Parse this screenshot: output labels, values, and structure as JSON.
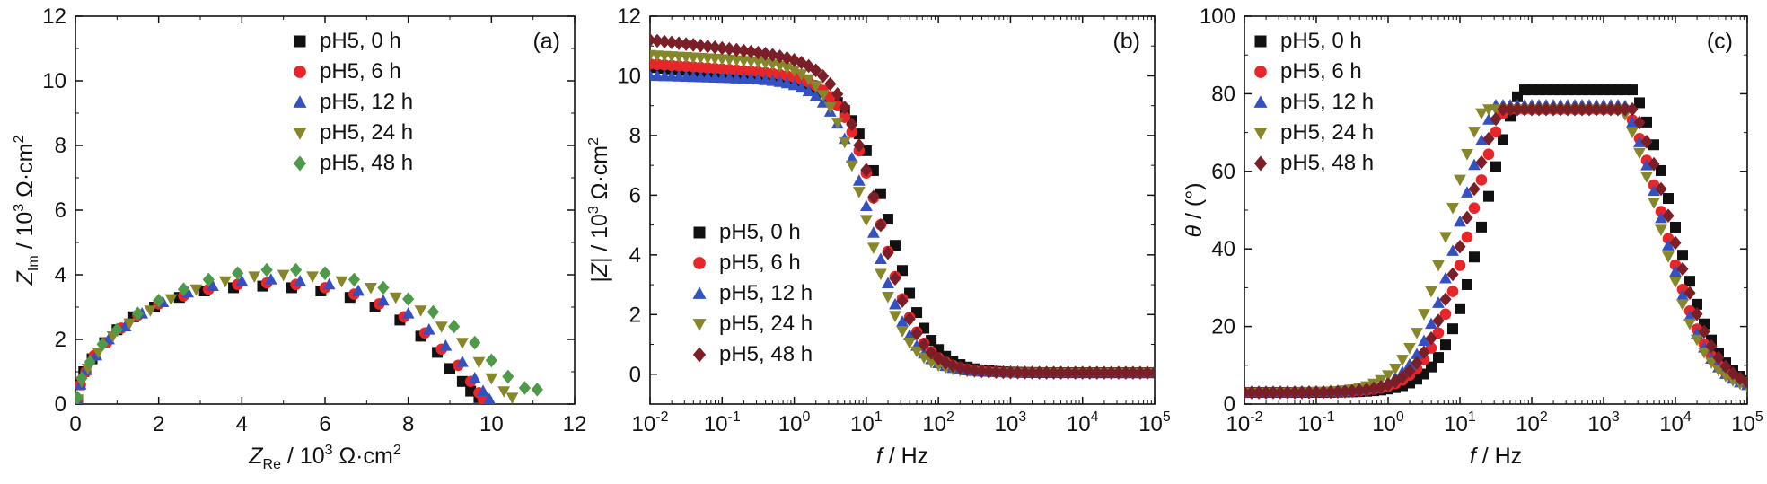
{
  "figure": {
    "colors": {
      "pH5, 0 h": "#111111",
      "pH5, 6 h": "#e8262a",
      "pH5, 12 h": "#3451c4",
      "pH5, 24 h": "#86862a",
      "pH5, 48 h": "#4f9a4a",
      "pH5, 48 h (b,c)": "#7a1f27"
    }
  },
  "chart_data": [
    {
      "panel": "(a)",
      "type": "scatter",
      "xlabel": {
        "main": "Z",
        "sub": "Re",
        "unit": " / 10",
        "sup": "3",
        "unit2": " Ω·cm",
        "sup2": "2"
      },
      "ylabel": {
        "main": "Z",
        "sub": "Im",
        "unit": " / 10",
        "sup": "3",
        "unit2": " Ω·cm",
        "sup2": "2"
      },
      "xlim": [
        0,
        12
      ],
      "ylim": [
        0,
        12
      ],
      "xticks": [
        "0",
        "2",
        "4",
        "6",
        "8",
        "10",
        "12"
      ],
      "yticks": [
        "0",
        "2",
        "4",
        "6",
        "8",
        "10",
        "12"
      ],
      "legend_position": "top-right",
      "series": [
        {
          "name": "pH5, 0 h",
          "marker": "square",
          "color": "#111111",
          "points": [
            [
              0.05,
              0.1
            ],
            [
              0.1,
              0.6
            ],
            [
              0.2,
              1.0
            ],
            [
              0.4,
              1.4
            ],
            [
              0.7,
              1.9
            ],
            [
              1.0,
              2.3
            ],
            [
              1.4,
              2.7
            ],
            [
              1.9,
              3.0
            ],
            [
              2.5,
              3.3
            ],
            [
              3.1,
              3.5
            ],
            [
              3.8,
              3.6
            ],
            [
              4.5,
              3.65
            ],
            [
              5.2,
              3.6
            ],
            [
              5.9,
              3.5
            ],
            [
              6.6,
              3.3
            ],
            [
              7.2,
              3.0
            ],
            [
              7.8,
              2.6
            ],
            [
              8.3,
              2.1
            ],
            [
              8.7,
              1.6
            ],
            [
              9.0,
              1.1
            ],
            [
              9.3,
              0.7
            ],
            [
              9.5,
              0.4
            ],
            [
              9.7,
              0.2
            ]
          ]
        },
        {
          "name": "pH5, 6 h",
          "marker": "circle",
          "color": "#e8262a",
          "points": [
            [
              0.05,
              0.1
            ],
            [
              0.12,
              0.6
            ],
            [
              0.25,
              1.0
            ],
            [
              0.45,
              1.5
            ],
            [
              0.75,
              1.9
            ],
            [
              1.1,
              2.35
            ],
            [
              1.5,
              2.75
            ],
            [
              2.0,
              3.1
            ],
            [
              2.6,
              3.35
            ],
            [
              3.2,
              3.55
            ],
            [
              3.9,
              3.7
            ],
            [
              4.6,
              3.75
            ],
            [
              5.3,
              3.7
            ],
            [
              6.0,
              3.6
            ],
            [
              6.7,
              3.4
            ],
            [
              7.3,
              3.1
            ],
            [
              7.9,
              2.7
            ],
            [
              8.4,
              2.2
            ],
            [
              8.8,
              1.7
            ],
            [
              9.2,
              1.2
            ],
            [
              9.5,
              0.7
            ],
            [
              9.7,
              0.35
            ],
            [
              9.8,
              0.15
            ]
          ]
        },
        {
          "name": "pH5, 12 h",
          "marker": "triangle-up",
          "color": "#3451c4",
          "points": [
            [
              0.05,
              0.1
            ],
            [
              0.12,
              0.6
            ],
            [
              0.25,
              1.05
            ],
            [
              0.5,
              1.5
            ],
            [
              0.8,
              2.0
            ],
            [
              1.2,
              2.4
            ],
            [
              1.6,
              2.8
            ],
            [
              2.1,
              3.15
            ],
            [
              2.7,
              3.45
            ],
            [
              3.3,
              3.65
            ],
            [
              4.0,
              3.8
            ],
            [
              4.7,
              3.85
            ],
            [
              5.4,
              3.8
            ],
            [
              6.1,
              3.7
            ],
            [
              6.8,
              3.5
            ],
            [
              7.4,
              3.2
            ],
            [
              8.0,
              2.8
            ],
            [
              8.5,
              2.3
            ],
            [
              8.9,
              1.8
            ],
            [
              9.3,
              1.3
            ],
            [
              9.6,
              0.8
            ],
            [
              9.8,
              0.4
            ],
            [
              9.95,
              0.15
            ]
          ]
        },
        {
          "name": "pH5, 24 h",
          "marker": "triangle-down",
          "color": "#86862a",
          "points": [
            [
              0.05,
              0.15
            ],
            [
              0.15,
              0.7
            ],
            [
              0.3,
              1.1
            ],
            [
              0.55,
              1.6
            ],
            [
              0.9,
              2.1
            ],
            [
              1.3,
              2.5
            ],
            [
              1.8,
              2.9
            ],
            [
              2.3,
              3.25
            ],
            [
              2.9,
              3.55
            ],
            [
              3.6,
              3.8
            ],
            [
              4.3,
              3.95
            ],
            [
              5.0,
              4.0
            ],
            [
              5.7,
              3.95
            ],
            [
              6.4,
              3.8
            ],
            [
              7.1,
              3.6
            ],
            [
              7.7,
              3.3
            ],
            [
              8.3,
              2.9
            ],
            [
              8.8,
              2.4
            ],
            [
              9.3,
              1.9
            ],
            [
              9.7,
              1.3
            ],
            [
              10.0,
              0.8
            ],
            [
              10.3,
              0.4
            ],
            [
              10.5,
              0.2
            ]
          ]
        },
        {
          "name": "pH5, 48 h",
          "marker": "diamond",
          "color": "#4f9a4a",
          "points": [
            [
              0.05,
              0.2
            ],
            [
              0.15,
              0.8
            ],
            [
              0.35,
              1.3
            ],
            [
              0.65,
              1.85
            ],
            [
              1.0,
              2.3
            ],
            [
              1.5,
              2.8
            ],
            [
              2.0,
              3.2
            ],
            [
              2.6,
              3.55
            ],
            [
              3.2,
              3.85
            ],
            [
              3.9,
              4.05
            ],
            [
              4.6,
              4.15
            ],
            [
              5.3,
              4.15
            ],
            [
              6.0,
              4.05
            ],
            [
              6.7,
              3.85
            ],
            [
              7.4,
              3.6
            ],
            [
              8.0,
              3.25
            ],
            [
              8.6,
              2.85
            ],
            [
              9.1,
              2.4
            ],
            [
              9.6,
              1.9
            ],
            [
              10.0,
              1.35
            ],
            [
              10.4,
              0.85
            ],
            [
              10.8,
              0.5
            ],
            [
              11.1,
              0.45
            ]
          ]
        }
      ]
    },
    {
      "panel": "(b)",
      "type": "scatter",
      "xlabel": {
        "main": "f",
        "unit": " / Hz"
      },
      "ylabel": {
        "main": "|Z|",
        "unit": " / 10",
        "sup": "3",
        "unit2": " Ω·cm",
        "sup2": "2"
      },
      "xscale": "log",
      "xlim": [
        0.01,
        100000
      ],
      "ylim": [
        -1,
        12
      ],
      "xticks": [
        {
          "base": "10",
          "exp": "-2"
        },
        {
          "base": "10",
          "exp": "-1"
        },
        {
          "base": "10",
          "exp": "0"
        },
        {
          "base": "10",
          "exp": "1"
        },
        {
          "base": "10",
          "exp": "2"
        },
        {
          "base": "10",
          "exp": "3"
        },
        {
          "base": "10",
          "exp": "4"
        },
        {
          "base": "10",
          "exp": "5"
        }
      ],
      "yticks": [
        "0",
        "2",
        "4",
        "6",
        "8",
        "10",
        "12"
      ],
      "legend_position": "bottom-left",
      "series": [
        {
          "name": "pH5, 0 h",
          "marker": "square",
          "color": "#111111",
          "low": 9.6,
          "high": 10.3,
          "fc": 22,
          "n": 1.6,
          "tail": 0.05
        },
        {
          "name": "pH5, 6 h",
          "marker": "circle",
          "color": "#e8262a",
          "low": 9.9,
          "high": 10.4,
          "fc": 16,
          "n": 1.6,
          "tail": 0.05
        },
        {
          "name": "pH5, 12 h",
          "marker": "triangle-up",
          "color": "#3451c4",
          "low": 9.8,
          "high": 10.0,
          "fc": 12,
          "n": 1.6,
          "tail": 0.05
        },
        {
          "name": "pH5, 24 h",
          "marker": "triangle-down",
          "color": "#86862a",
          "low": 10.3,
          "high": 10.7,
          "fc": 10,
          "n": 1.6,
          "tail": 0.05
        },
        {
          "name": "pH5, 48 h",
          "marker": "diamond",
          "color": "#7a1f27",
          "low": 10.4,
          "high": 11.2,
          "fc": 15,
          "n": 1.6,
          "tail": 0.05
        }
      ]
    },
    {
      "panel": "(c)",
      "type": "scatter",
      "xlabel": {
        "main": "f",
        "unit": " / Hz"
      },
      "ylabel": {
        "main": "θ",
        "unit": " / (°)"
      },
      "xscale": "log",
      "xlim": [
        0.01,
        100000
      ],
      "ylim": [
        0,
        100
      ],
      "xticks": [
        {
          "base": "10",
          "exp": "-2"
        },
        {
          "base": "10",
          "exp": "-1"
        },
        {
          "base": "10",
          "exp": "0"
        },
        {
          "base": "10",
          "exp": "1"
        },
        {
          "base": "10",
          "exp": "2"
        },
        {
          "base": "10",
          "exp": "3"
        },
        {
          "base": "10",
          "exp": "4"
        },
        {
          "base": "10",
          "exp": "5"
        }
      ],
      "yticks": [
        "0",
        "20",
        "40",
        "60",
        "80",
        "100"
      ],
      "legend_position": "top-left",
      "series": [
        {
          "name": "pH5, 0 h",
          "marker": "square",
          "color": "#111111",
          "peak": 80,
          "f_peak": 500,
          "low_rise": 22,
          "high_fall": 9000
        },
        {
          "name": "pH5, 6 h",
          "marker": "circle",
          "color": "#e8262a",
          "peak": 75,
          "f_peak": 700,
          "low_rise": 14,
          "high_fall": 7000
        },
        {
          "name": "pH5, 12 h",
          "marker": "triangle-up",
          "color": "#3451c4",
          "peak": 76,
          "f_peak": 700,
          "low_rise": 10,
          "high_fall": 6500
        },
        {
          "name": "pH5, 24 h",
          "marker": "triangle-down",
          "color": "#86862a",
          "peak": 75,
          "f_peak": 500,
          "low_rise": 7,
          "high_fall": 6000
        },
        {
          "name": "pH5, 48 h",
          "marker": "diamond",
          "color": "#7a1f27",
          "peak": 75,
          "f_peak": 300,
          "low_rise": 12,
          "high_fall": 8500
        }
      ]
    }
  ]
}
